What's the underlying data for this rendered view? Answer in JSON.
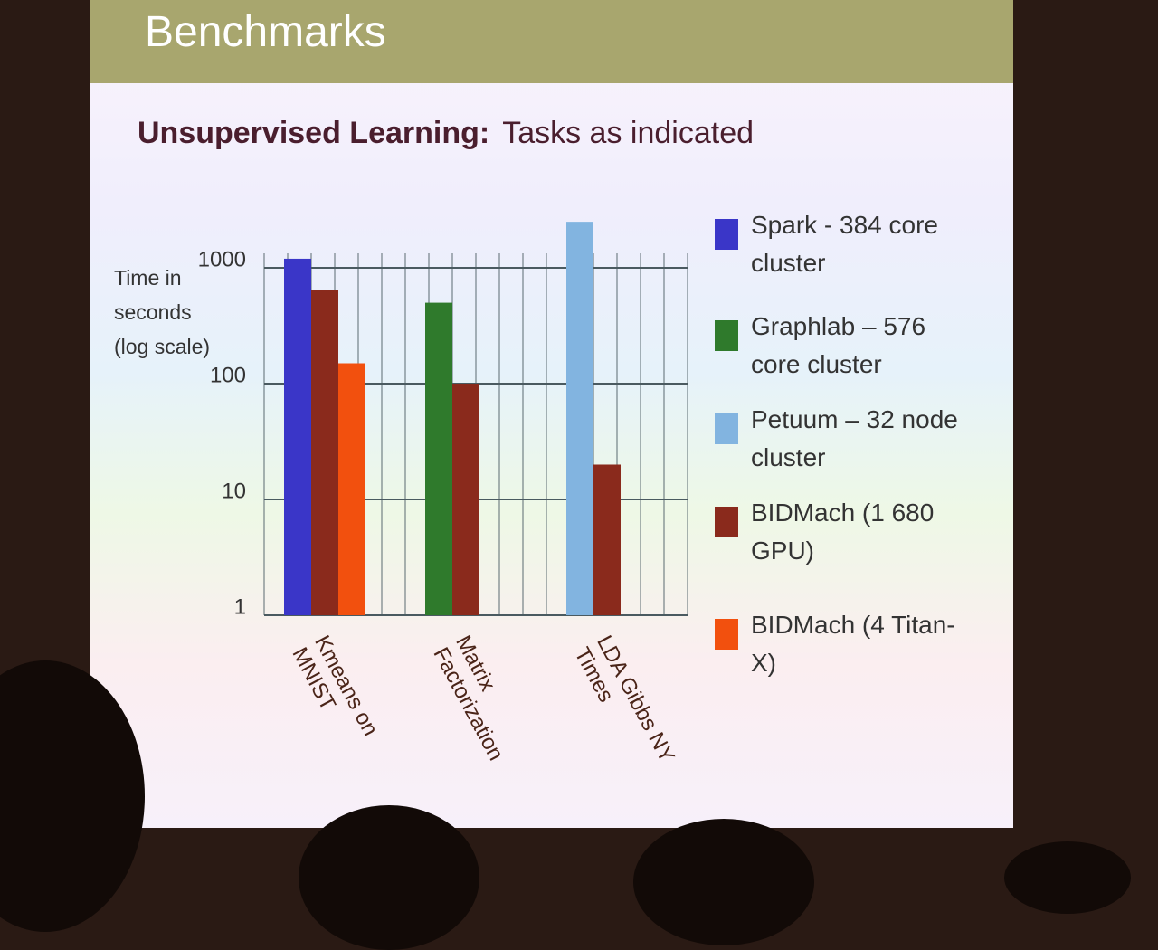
{
  "chart_data": {
    "type": "bar",
    "title": "Benchmarks",
    "heading": "Unsupervised Learning:",
    "subtitle": "Tasks as indicated",
    "y_label": "Time in seconds (log scale)",
    "categories": [
      "Kmeans on MNIST",
      "Matrix Factorization",
      "LDA Gibbs NY Times"
    ],
    "series": [
      {
        "name": "Spark - 384 core cluster",
        "color": "#3a36c8",
        "values": [
          1200,
          null,
          null
        ]
      },
      {
        "name": "Graphlab – 576 core cluster",
        "color": "#2f7a2c",
        "values": [
          null,
          500,
          null
        ]
      },
      {
        "name": "Petuum – 32 node cluster",
        "color": "#82b4e0",
        "values": [
          null,
          null,
          2500
        ]
      },
      {
        "name": "BIDMach (1 680 GPU)",
        "color": "#8a2a1c",
        "values": [
          650,
          100,
          20
        ]
      },
      {
        "name": "BIDMach (4 Titan-X)",
        "color": "#f2500e",
        "values": [
          150,
          null,
          null
        ]
      }
    ],
    "log": true,
    "ylim": [
      1,
      3000
    ],
    "yticks": [
      1,
      10,
      100,
      1000
    ],
    "grid": true
  }
}
